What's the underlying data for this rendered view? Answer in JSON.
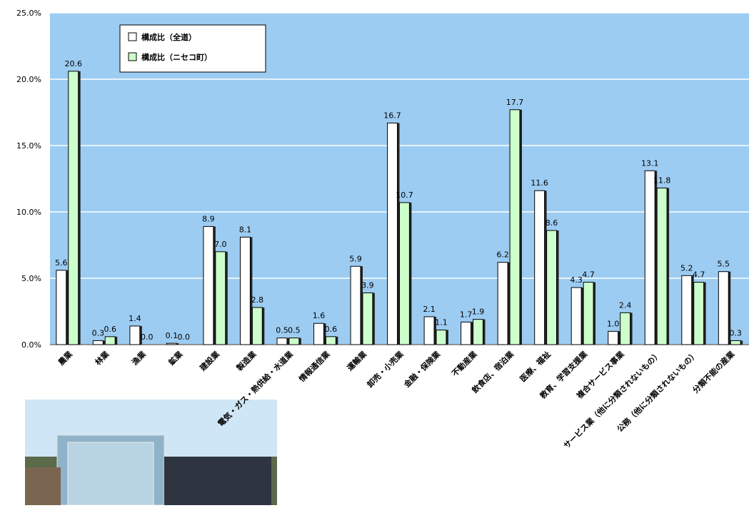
{
  "chart_data": {
    "type": "bar",
    "categories": [
      "農業",
      "林業",
      "漁業",
      "鉱業",
      "建設業",
      "製造業",
      "電気・ガス・熱供給・水道業",
      "情報通信業",
      "運輸業",
      "卸売・小売業",
      "金融・保険業",
      "不動産業",
      "飲食店、宿泊業",
      "医療、福祉",
      "教育、学習支援業",
      "複合サービス事業",
      "サービス業（他に分類されないもの）",
      "公務（他に分類されないもの）",
      "分類不能の産業"
    ],
    "series": [
      {
        "name": "構成比（全道）",
        "color": "#ffffff",
        "values": [
          5.6,
          0.3,
          1.4,
          0.1,
          8.9,
          8.1,
          0.5,
          1.6,
          5.9,
          16.7,
          2.1,
          1.7,
          6.2,
          11.6,
          4.3,
          1.0,
          13.1,
          5.2,
          5.5
        ],
        "value_labels": [
          "5.6",
          "0.3",
          "1.4",
          "0.1",
          "8.9",
          "8.1",
          "0.5",
          "1.6",
          "5.9",
          "16.7",
          "2.1",
          "1.7",
          "6.2",
          "11.6",
          "4.3",
          "1.0",
          "13.1",
          "5.2",
          "5.5"
        ]
      },
      {
        "name": "構成比（ニセコ町）",
        "color": "#ccffcc",
        "values": [
          20.6,
          0.6,
          0.0,
          0.0,
          7.0,
          2.8,
          0.5,
          0.6,
          3.9,
          10.7,
          1.1,
          1.9,
          17.7,
          8.6,
          4.7,
          2.4,
          11.8,
          4.7,
          0.3
        ],
        "value_labels": [
          "20.6",
          "0.6",
          "0.0",
          "0.0",
          "7.0",
          "2.8",
          "0.5",
          "0.6",
          "3.9",
          "10.7",
          "1.1",
          "1.9",
          "17.7",
          "8.6",
          "4.7",
          "2.4",
          "11.8",
          "4.7",
          "0.3"
        ]
      }
    ],
    "ylim": [
      0,
      25
    ],
    "yticks": [
      {
        "value": 0,
        "label": "0.0%"
      },
      {
        "value": 5,
        "label": "5.0%"
      },
      {
        "value": 10,
        "label": "10.0%"
      },
      {
        "value": 15,
        "label": "15.0%"
      },
      {
        "value": 20,
        "label": "20.0%"
      },
      {
        "value": 25,
        "label": "25.0%"
      }
    ],
    "grid": true,
    "legend": "upper-left",
    "background": "#9dccf2"
  }
}
